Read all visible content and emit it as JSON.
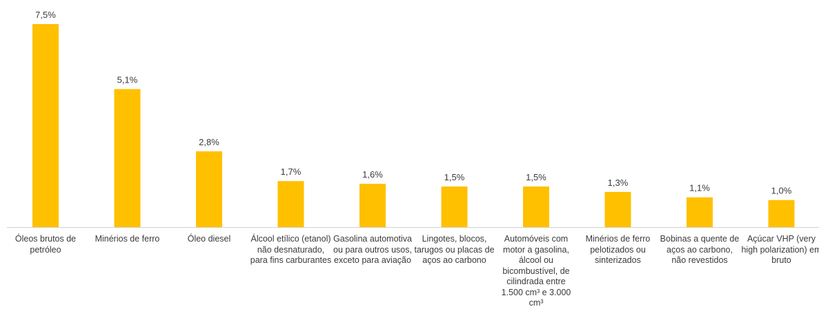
{
  "colors": {
    "bar": "#FFC000",
    "axis": "#d0d0d0",
    "text": "#3a3a3a"
  },
  "chart_data": {
    "type": "bar",
    "title": "",
    "xlabel": "",
    "ylabel": "",
    "grid": false,
    "ylim": [
      0,
      7.5
    ],
    "categories": [
      "Óleos brutos de petróleo",
      "Minérios de ferro",
      "Óleo diesel",
      "Álcool etílico (etanol) não desnaturado, para fins carburantes",
      "Gasolina automotiva ou para outros usos, exceto para aviação",
      "Lingotes, blocos, tarugos ou placas de aços ao carbono",
      "Automóveis com motor a gasolina, álcool ou bicombustível, de cilindrada entre 1.500 cm³ e 3.000 cm³",
      "Minérios de ferro pelotizados ou sinterizados",
      "Bobinas a quente de aços ao carbono, não revestidos",
      "Açúcar VHP (very high polarization) em bruto"
    ],
    "values": [
      7.5,
      5.1,
      2.8,
      1.7,
      1.6,
      1.5,
      1.5,
      1.3,
      1.1,
      1.0
    ],
    "data_labels": [
      "7,5%",
      "5,1%",
      "2,8%",
      "1,7%",
      "1,6%",
      "1,5%",
      "1,5%",
      "1,3%",
      "1,1%",
      "1,0%"
    ]
  }
}
